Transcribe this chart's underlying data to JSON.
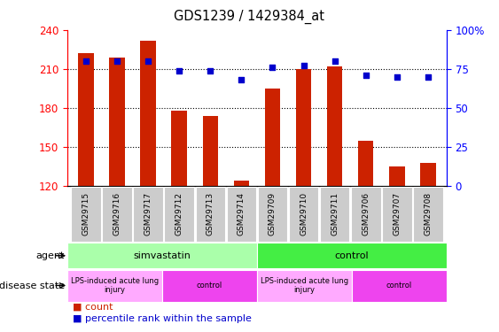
{
  "title": "GDS1239 / 1429384_at",
  "samples": [
    "GSM29715",
    "GSM29716",
    "GSM29717",
    "GSM29712",
    "GSM29713",
    "GSM29714",
    "GSM29709",
    "GSM29710",
    "GSM29711",
    "GSM29706",
    "GSM29707",
    "GSM29708"
  ],
  "counts": [
    222,
    219,
    232,
    178,
    174,
    124,
    195,
    210,
    212,
    155,
    135,
    138
  ],
  "percentiles": [
    80,
    80,
    80,
    74,
    74,
    68,
    76,
    77,
    80,
    71,
    70,
    70
  ],
  "ymin": 120,
  "ymax": 240,
  "yticks": [
    120,
    150,
    180,
    210,
    240
  ],
  "yright_min": 0,
  "yright_max": 100,
  "yright_ticks": [
    0,
    25,
    50,
    75,
    100
  ],
  "bar_color": "#cc2200",
  "dot_color": "#0000cc",
  "agent_groups": [
    {
      "label": "simvastatin",
      "start": 0,
      "end": 6,
      "color": "#aaffaa"
    },
    {
      "label": "control",
      "start": 6,
      "end": 12,
      "color": "#44ee44"
    }
  ],
  "disease_groups": [
    {
      "label": "LPS-induced acute lung\ninjury",
      "start": 0,
      "end": 3,
      "color": "#ffaaff"
    },
    {
      "label": "control",
      "start": 3,
      "end": 6,
      "color": "#ee44ee"
    },
    {
      "label": "LPS-induced acute lung\ninjury",
      "start": 6,
      "end": 9,
      "color": "#ffaaff"
    },
    {
      "label": "control",
      "start": 9,
      "end": 12,
      "color": "#ee44ee"
    }
  ]
}
